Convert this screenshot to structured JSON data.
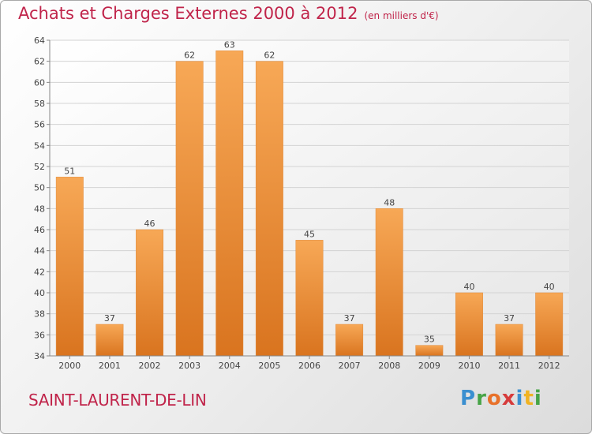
{
  "chart_title": "Achats et Charges Externes 2000 à 2012",
  "chart_unit": "(en milliers d'€)",
  "place_name": "SAINT-LAURENT-DE-LIN",
  "logo_text": "Proxiti",
  "colors": {
    "title": "#c0244a",
    "bar_light": "#f7a856",
    "bar_dark": "#d9741f",
    "grid": "#d3d3d3"
  },
  "chart_data": {
    "type": "bar",
    "title": "Achats et Charges Externes 2000 à 2012",
    "subtitle": "(en milliers d'€)",
    "xlabel": "",
    "ylabel": "",
    "ylim": [
      34,
      64
    ],
    "yticks": [
      34,
      36,
      38,
      40,
      42,
      44,
      46,
      48,
      50,
      52,
      54,
      56,
      58,
      60,
      62,
      64
    ],
    "grid": true,
    "categories": [
      "2000",
      "2001",
      "2002",
      "2003",
      "2004",
      "2005",
      "2006",
      "2007",
      "2008",
      "2009",
      "2010",
      "2011",
      "2012"
    ],
    "values": [
      51,
      37,
      46,
      62,
      63,
      62,
      45,
      37,
      48,
      35,
      40,
      37,
      40
    ]
  }
}
